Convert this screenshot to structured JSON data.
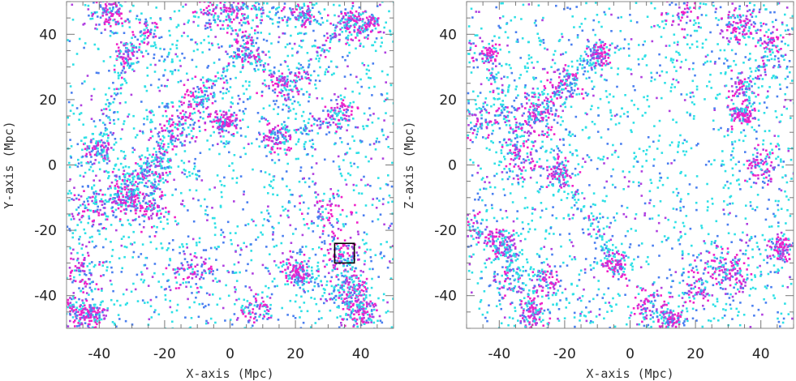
{
  "chart_data": [
    {
      "type": "scatter",
      "title": "",
      "xlabel": "X-axis (Mpc)",
      "ylabel": "Y-axis (Mpc)",
      "xlim": [
        -50,
        50
      ],
      "ylim": [
        -50,
        50
      ],
      "xticks": [
        -40,
        -20,
        0,
        20,
        40
      ],
      "yticks": [
        -40,
        -20,
        0,
        20,
        40
      ],
      "grid": false,
      "legend": "none",
      "series_colors": [
        "#2ee0e6",
        "#4a7ff0",
        "#b040e0",
        "#f020c8"
      ],
      "clusters": [
        {
          "x": -48,
          "y": -45
        },
        {
          "x": -43,
          "y": -46
        },
        {
          "x": -45,
          "y": -33
        },
        {
          "x": -31,
          "y": 35
        },
        {
          "x": -26,
          "y": 41
        },
        {
          "x": -37,
          "y": 48
        },
        {
          "x": -41,
          "y": 5
        },
        {
          "x": -24,
          "y": 0
        },
        {
          "x": -32,
          "y": -10
        },
        {
          "x": -25,
          "y": -13
        },
        {
          "x": -44,
          "y": -12
        },
        {
          "x": -10,
          "y": 20
        },
        {
          "x": -18,
          "y": 12
        },
        {
          "x": -5,
          "y": 47
        },
        {
          "x": 5,
          "y": 36
        },
        {
          "x": 2,
          "y": 48
        },
        {
          "x": 14,
          "y": 8
        },
        {
          "x": 17,
          "y": 24
        },
        {
          "x": 23,
          "y": 46
        },
        {
          "x": 34,
          "y": 16
        },
        {
          "x": 36,
          "y": 44
        },
        {
          "x": 30,
          "y": -15
        },
        {
          "x": 34,
          "y": -27
        },
        {
          "x": 37,
          "y": -38
        },
        {
          "x": 42,
          "y": 43
        },
        {
          "x": 40,
          "y": -45
        },
        {
          "x": -12,
          "y": -32
        },
        {
          "x": 8,
          "y": -44
        },
        {
          "x": 20,
          "y": -32
        },
        {
          "x": -2,
          "y": 13
        }
      ],
      "annotations": [
        {
          "type": "box",
          "x": [
            32,
            38
          ],
          "y": [
            -30,
            -24
          ]
        }
      ]
    },
    {
      "type": "scatter",
      "title": "",
      "xlabel": "X-axis (Mpc)",
      "ylabel": "Z-axis (Mpc)",
      "xlim": [
        -50,
        50
      ],
      "ylim": [
        -50,
        50
      ],
      "xticks": [
        -40,
        -20,
        0,
        20,
        40
      ],
      "yticks": [
        -40,
        -20,
        0,
        20,
        40
      ],
      "grid": false,
      "legend": "none",
      "series_colors": [
        "#2ee0e6",
        "#4a7ff0",
        "#b040e0",
        "#f020c8"
      ],
      "clusters": [
        {
          "x": 34,
          "y": 24
        },
        {
          "x": 34,
          "y": 16
        },
        {
          "x": 33,
          "y": 43
        },
        {
          "x": 28,
          "y": -30
        },
        {
          "x": 31,
          "y": -34
        },
        {
          "x": 20,
          "y": -38
        },
        {
          "x": -32,
          "y": 14
        },
        {
          "x": -28,
          "y": 18
        },
        {
          "x": -20,
          "y": 26
        },
        {
          "x": -10,
          "y": 34
        },
        {
          "x": -40,
          "y": -23
        },
        {
          "x": -48,
          "y": -20
        },
        {
          "x": -38,
          "y": -36
        },
        {
          "x": -30,
          "y": -45
        },
        {
          "x": -26,
          "y": -35
        },
        {
          "x": 5,
          "y": -42
        },
        {
          "x": 12,
          "y": -47
        },
        {
          "x": 16,
          "y": 47
        },
        {
          "x": -46,
          "y": 13
        },
        {
          "x": 46,
          "y": -25
        },
        {
          "x": -44,
          "y": 34
        },
        {
          "x": 40,
          "y": 0
        },
        {
          "x": -22,
          "y": -2
        },
        {
          "x": -34,
          "y": 2
        },
        {
          "x": 44,
          "y": 38
        },
        {
          "x": -5,
          "y": -30
        }
      ],
      "annotations": []
    }
  ]
}
